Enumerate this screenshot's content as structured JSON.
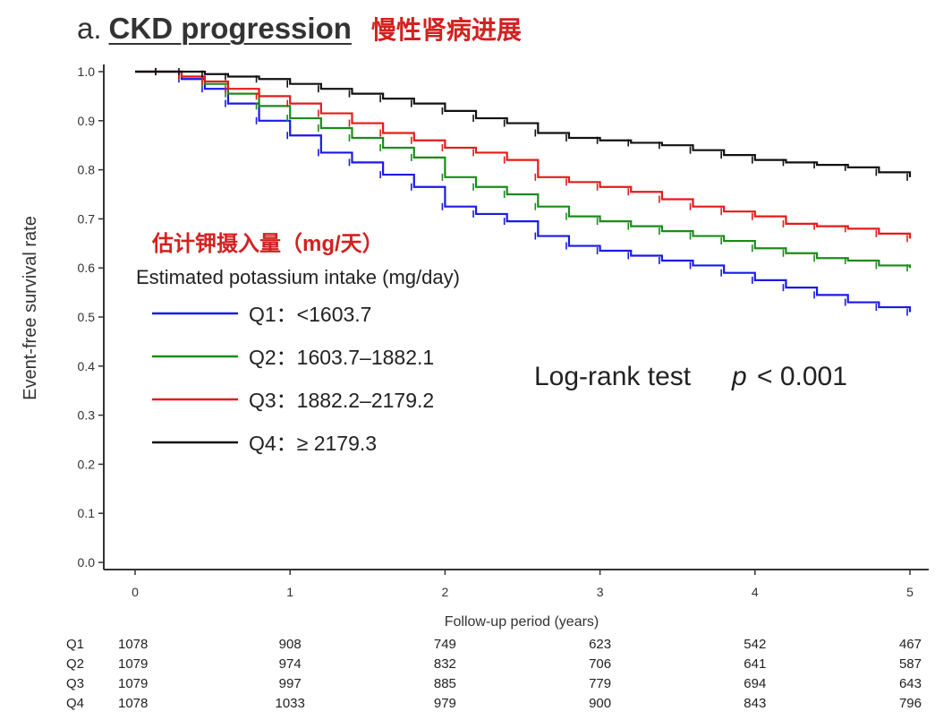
{
  "header": {
    "panel": "a.",
    "title": "CKD progression",
    "title_zh": "慢性肾病进展"
  },
  "legend": {
    "title_zh": "估计钾摄入量（mg/天）",
    "title": "Estimated potassium intake (mg/day)",
    "entries": [
      {
        "label": "Q1：<1603.7",
        "color": "#1a1ae6"
      },
      {
        "label": "Q2：1603.7–1882.1",
        "color": "#1a8c1a"
      },
      {
        "label": "Q3：1882.2–2179.2",
        "color": "#e61a1a"
      },
      {
        "label": "Q4：≥ 2179.3",
        "color": "#111111"
      }
    ]
  },
  "annotation": {
    "prefix": "Log-rank test",
    "p_symbol": "p",
    "value": "< 0.001"
  },
  "chart_data": {
    "type": "line",
    "subtype": "kaplan-meier",
    "title": "CKD progression",
    "xlabel": "Follow-up period (years)",
    "ylabel": "Event-free survival rate",
    "xlim": [
      0,
      5
    ],
    "ylim": [
      0,
      1
    ],
    "x_ticks": [
      "0",
      "1",
      "2",
      "3",
      "4",
      "5"
    ],
    "y_ticks": [
      "0.0",
      "0.1",
      "0.2",
      "0.3",
      "0.4",
      "0.5",
      "0.6",
      "0.7",
      "0.8",
      "0.9",
      "1.0"
    ],
    "series": [
      {
        "name": "Q1",
        "color": "#1a1ae6",
        "x": [
          0,
          0.15,
          0.3,
          0.45,
          0.6,
          0.8,
          1.0,
          1.2,
          1.4,
          1.6,
          1.8,
          2.0,
          2.2,
          2.4,
          2.6,
          2.8,
          3.0,
          3.2,
          3.4,
          3.6,
          3.8,
          4.0,
          4.2,
          4.4,
          4.6,
          4.8,
          5.0
        ],
        "y": [
          1.0,
          1.0,
          0.985,
          0.965,
          0.935,
          0.9,
          0.87,
          0.835,
          0.815,
          0.79,
          0.765,
          0.725,
          0.71,
          0.695,
          0.665,
          0.645,
          0.635,
          0.625,
          0.615,
          0.605,
          0.59,
          0.575,
          0.56,
          0.545,
          0.53,
          0.52,
          0.51
        ]
      },
      {
        "name": "Q2",
        "color": "#1a8c1a",
        "x": [
          0,
          0.15,
          0.3,
          0.45,
          0.6,
          0.8,
          1.0,
          1.2,
          1.4,
          1.6,
          1.8,
          2.0,
          2.2,
          2.4,
          2.6,
          2.8,
          3.0,
          3.2,
          3.4,
          3.6,
          3.8,
          4.0,
          4.2,
          4.4,
          4.6,
          4.8,
          5.0
        ],
        "y": [
          1.0,
          1.0,
          0.99,
          0.975,
          0.955,
          0.93,
          0.905,
          0.885,
          0.865,
          0.845,
          0.825,
          0.785,
          0.765,
          0.75,
          0.725,
          0.705,
          0.695,
          0.685,
          0.675,
          0.665,
          0.655,
          0.64,
          0.63,
          0.62,
          0.615,
          0.605,
          0.6
        ]
      },
      {
        "name": "Q3",
        "color": "#e61a1a",
        "x": [
          0,
          0.15,
          0.3,
          0.45,
          0.6,
          0.8,
          1.0,
          1.2,
          1.4,
          1.6,
          1.8,
          2.0,
          2.2,
          2.4,
          2.6,
          2.8,
          3.0,
          3.2,
          3.4,
          3.6,
          3.8,
          4.0,
          4.2,
          4.4,
          4.6,
          4.8,
          5.0
        ],
        "y": [
          1.0,
          1.0,
          0.99,
          0.98,
          0.965,
          0.95,
          0.935,
          0.915,
          0.895,
          0.875,
          0.86,
          0.845,
          0.835,
          0.82,
          0.785,
          0.775,
          0.765,
          0.755,
          0.74,
          0.725,
          0.715,
          0.705,
          0.69,
          0.685,
          0.68,
          0.67,
          0.66
        ]
      },
      {
        "name": "Q4",
        "color": "#111111",
        "x": [
          0,
          0.15,
          0.3,
          0.45,
          0.6,
          0.8,
          1.0,
          1.2,
          1.4,
          1.6,
          1.8,
          2.0,
          2.2,
          2.4,
          2.6,
          2.8,
          3.0,
          3.2,
          3.4,
          3.6,
          3.8,
          4.0,
          4.2,
          4.4,
          4.6,
          4.8,
          5.0
        ],
        "y": [
          1.0,
          1.0,
          1.0,
          0.995,
          0.99,
          0.985,
          0.975,
          0.965,
          0.955,
          0.945,
          0.935,
          0.92,
          0.905,
          0.895,
          0.875,
          0.865,
          0.86,
          0.855,
          0.85,
          0.84,
          0.83,
          0.82,
          0.815,
          0.81,
          0.805,
          0.795,
          0.785
        ]
      }
    ],
    "risk_table": {
      "rows": [
        {
          "label": "Q1",
          "values": [
            "1078",
            "908",
            "749",
            "623",
            "542",
            "467"
          ]
        },
        {
          "label": "Q2",
          "values": [
            "1079",
            "974",
            "832",
            "706",
            "641",
            "587"
          ]
        },
        {
          "label": "Q3",
          "values": [
            "1079",
            "997",
            "885",
            "779",
            "694",
            "643"
          ]
        },
        {
          "label": "Q4",
          "values": [
            "1078",
            "1033",
            "979",
            "900",
            "843",
            "796"
          ]
        }
      ]
    }
  }
}
